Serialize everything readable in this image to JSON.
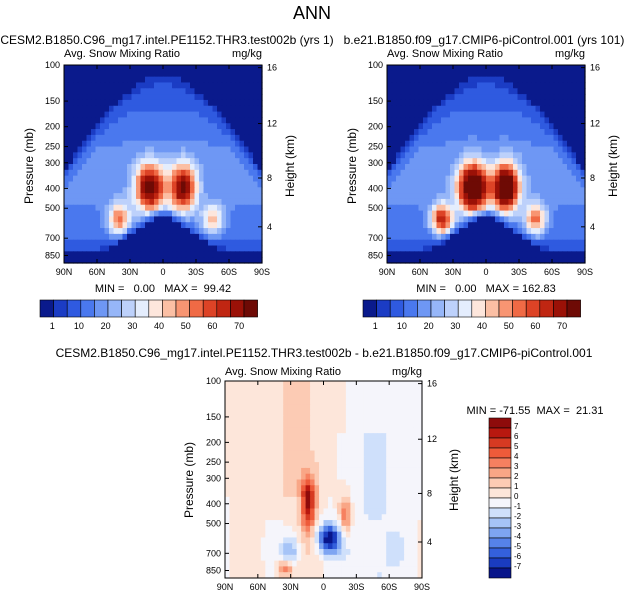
{
  "figure": {
    "title": "ANN"
  },
  "chart_data": [
    {
      "type": "contour",
      "id": "panel_a",
      "title": "CESM2.B1850.C96_mg17.intel.PE1152.THR3.test002b (yrs 1)",
      "subtitle_left": "Avg. Snow Mixing Ratio",
      "subtitle_right": "mg/kg",
      "xlabel": "",
      "ylabel": "Pressure (mb)",
      "ylabel_right": "Height (km)",
      "x_ticks": [
        "90N",
        "60N",
        "30N",
        "0",
        "30S",
        "60S",
        "90S"
      ],
      "y_ticks": [
        "100",
        "150",
        "200",
        "250",
        "300",
        "400",
        "500",
        "700",
        "850"
      ],
      "y_ticks_right": [
        "16",
        "12",
        "8",
        "4"
      ],
      "stats": {
        "min": "0.00",
        "max": "99.42"
      },
      "stats_text": "MIN =   0.00   MAX =  99.42",
      "colorbar": {
        "labels": [
          "1",
          "10",
          "20",
          "30",
          "40",
          "50",
          "60",
          "70"
        ],
        "colors": [
          "#0a1a8c",
          "#1b3cc4",
          "#2f5ae0",
          "#4a78ee",
          "#6e97f4",
          "#96b6f8",
          "#bdd1fb",
          "#e4edfd",
          "#fde6dc",
          "#fbbfa4",
          "#f89572",
          "#f06a45",
          "#dd4326",
          "#c02612",
          "#9b1107",
          "#6e0a05"
        ]
      }
    },
    {
      "type": "contour",
      "id": "panel_b",
      "title": "b.e21.B1850.f09_g17.CMIP6-piControl.001 (yrs 101)",
      "subtitle_left": "Avg. Snow Mixing Ratio",
      "subtitle_right": "mg/kg",
      "xlabel": "",
      "ylabel": "Pressure (mb)",
      "ylabel_right": "Height (km)",
      "x_ticks": [
        "90N",
        "60N",
        "30N",
        "0",
        "30S",
        "60S",
        "90S"
      ],
      "y_ticks": [
        "100",
        "150",
        "200",
        "250",
        "300",
        "400",
        "500",
        "700",
        "850"
      ],
      "y_ticks_right": [
        "16",
        "12",
        "8",
        "4"
      ],
      "stats": {
        "min": "0.00",
        "max": "162.83"
      },
      "stats_text": "MIN =   0.00   MAX = 162.83",
      "colorbar": {
        "labels": [
          "1",
          "10",
          "20",
          "30",
          "40",
          "50",
          "60",
          "70"
        ],
        "colors": [
          "#0a1a8c",
          "#1b3cc4",
          "#2f5ae0",
          "#4a78ee",
          "#6e97f4",
          "#96b6f8",
          "#bdd1fb",
          "#e4edfd",
          "#fde6dc",
          "#fbbfa4",
          "#f89572",
          "#f06a45",
          "#dd4326",
          "#c02612",
          "#9b1107",
          "#6e0a05"
        ]
      }
    },
    {
      "type": "contour",
      "id": "panel_c",
      "title": "CESM2.B1850.C96_mg17.intel.PE1152.THR3.test002b - b.e21.B1850.f09_g17.CMIP6-piControl.001",
      "subtitle_left": "Avg. Snow Mixing Ratio",
      "subtitle_right": "mg/kg",
      "xlabel": "",
      "ylabel": "Pressure (mb)",
      "ylabel_right": "Height (km)",
      "x_ticks": [
        "90N",
        "60N",
        "30N",
        "0",
        "30S",
        "60S",
        "90S"
      ],
      "y_ticks": [
        "100",
        "150",
        "200",
        "250",
        "300",
        "400",
        "500",
        "700",
        "850"
      ],
      "y_ticks_right": [
        "16",
        "12",
        "8",
        "4"
      ],
      "stats": {
        "min": "-71.55",
        "max": "21.31"
      },
      "stats_text": "MIN = -71.55  MAX =  21.31",
      "colorbar": {
        "labels": [
          "7",
          "6",
          "5",
          "4",
          "3",
          "2",
          "1",
          "0",
          "-1",
          "-2",
          "-3",
          "-4",
          "-5",
          "-6",
          "-7"
        ],
        "colors": [
          "#8e0b0b",
          "#b8180f",
          "#d63a22",
          "#ee5b3a",
          "#f68060",
          "#f9a686",
          "#fccbb4",
          "#fde6da",
          "#f5f5fb",
          "#cfe0fb",
          "#a6c4f7",
          "#7ea5f2",
          "#5682e9",
          "#3460dc",
          "#1a3cc0",
          "#08158a"
        ]
      }
    }
  ]
}
